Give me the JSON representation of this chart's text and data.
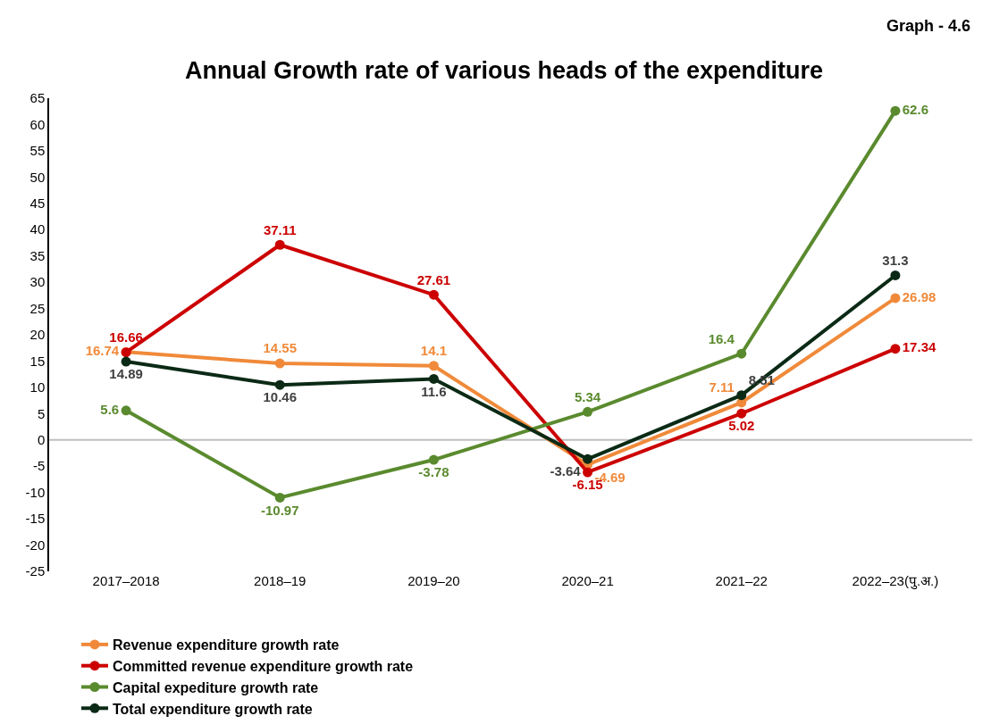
{
  "chart_data": {
    "type": "line",
    "title": "Annual Growth rate of various heads of the expenditure",
    "annotations": [
      "Graph - 4.6"
    ],
    "categories": [
      "2017–2018",
      "2018–19",
      "2019–20",
      "2020–21",
      "2021–22",
      "2022–23(पु.अ.)"
    ],
    "series": [
      {
        "name": "Revenue expenditure growth rate",
        "color": "#f08a3a",
        "values": [
          16.74,
          14.55,
          14.1,
          -4.69,
          7.11,
          26.98
        ]
      },
      {
        "name": "Committed revenue expenditure growth rate",
        "color": "#cc0000",
        "values": [
          16.66,
          37.11,
          27.61,
          -6.15,
          5.02,
          17.34
        ]
      },
      {
        "name": "Capital expediture growth rate",
        "color": "#5a8a2e",
        "values": [
          5.6,
          -10.97,
          -3.78,
          5.34,
          16.4,
          62.6
        ]
      },
      {
        "name": "Total expenditure growth rate",
        "color": "#0b2a16",
        "values": [
          14.89,
          10.46,
          11.6,
          -3.64,
          8.51,
          31.3
        ]
      }
    ],
    "ylim": [
      -25,
      65
    ],
    "yticks": [
      -25,
      -20,
      -15,
      -10,
      -5,
      0,
      5,
      10,
      15,
      20,
      25,
      30,
      35,
      40,
      45,
      50,
      55,
      60,
      65
    ],
    "ref_lines": [
      {
        "axis": "y",
        "value": 0,
        "color": "#bfbfbf"
      }
    ],
    "data_labels": true,
    "marker": "circle",
    "line_style": "solid",
    "grid": false,
    "legend": "bottom"
  }
}
